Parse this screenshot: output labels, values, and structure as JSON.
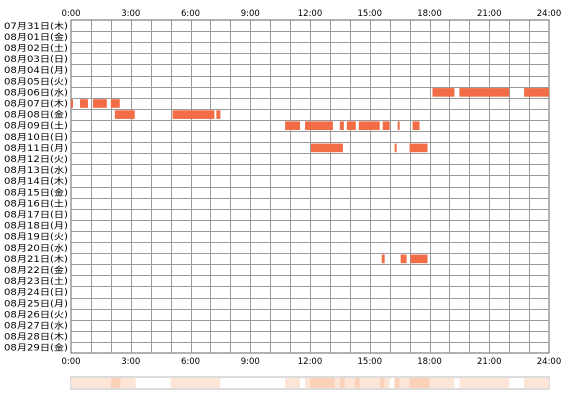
{
  "chart_data": {
    "type": "timeline",
    "title": "",
    "x_ticks": [
      "0:00",
      "3:00",
      "6:00",
      "9:00",
      "12:00",
      "15:00",
      "18:00",
      "21:00",
      "24:00"
    ],
    "x_range_hours": [
      0,
      24
    ],
    "grid": true,
    "rows": [
      {
        "label": "07月31日(木)",
        "spans": []
      },
      {
        "label": "08月01日(金)",
        "spans": []
      },
      {
        "label": "08月02日(土)",
        "spans": []
      },
      {
        "label": "08月03日(日)",
        "spans": []
      },
      {
        "label": "08月04日(月)",
        "spans": []
      },
      {
        "label": "08月05日(火)",
        "spans": []
      },
      {
        "label": "08月06日(水)",
        "spans": [
          [
            18.15,
            19.25
          ],
          [
            19.5,
            22.0
          ],
          [
            22.75,
            24.0
          ]
        ]
      },
      {
        "label": "08月07日(木)",
        "spans": [
          [
            0.0,
            0.1
          ],
          [
            0.45,
            0.85
          ],
          [
            1.1,
            1.8
          ],
          [
            2.0,
            2.45
          ]
        ]
      },
      {
        "label": "08月08日(金)",
        "spans": [
          [
            2.2,
            3.2
          ],
          [
            5.1,
            7.2
          ],
          [
            7.3,
            7.5
          ]
        ]
      },
      {
        "label": "08月09日(土)",
        "spans": [
          [
            10.75,
            11.5
          ],
          [
            11.75,
            13.15
          ],
          [
            13.5,
            13.7
          ],
          [
            13.85,
            14.3
          ],
          [
            14.45,
            15.5
          ],
          [
            15.65,
            16.0
          ],
          [
            16.4,
            16.5
          ],
          [
            17.15,
            17.5
          ]
        ]
      },
      {
        "label": "08月10日(日)",
        "spans": []
      },
      {
        "label": "08月11日(月)",
        "spans": [
          [
            12.05,
            13.65
          ],
          [
            16.25,
            16.35
          ],
          [
            17.0,
            17.9
          ]
        ]
      },
      {
        "label": "08月12日(火)",
        "spans": []
      },
      {
        "label": "08月13日(水)",
        "spans": []
      },
      {
        "label": "08月14日(木)",
        "spans": []
      },
      {
        "label": "08月15日(金)",
        "spans": []
      },
      {
        "label": "08月16日(土)",
        "spans": []
      },
      {
        "label": "08月17日(日)",
        "spans": []
      },
      {
        "label": "08月18日(月)",
        "spans": []
      },
      {
        "label": "08月19日(火)",
        "spans": []
      },
      {
        "label": "08月20日(水)",
        "spans": []
      },
      {
        "label": "08月21日(木)",
        "spans": [
          [
            15.6,
            15.75
          ],
          [
            16.55,
            16.85
          ],
          [
            17.05,
            17.9
          ]
        ]
      },
      {
        "label": "08月22日(金)",
        "spans": []
      },
      {
        "label": "08月23日(土)",
        "spans": []
      },
      {
        "label": "08月24日(日)",
        "spans": []
      },
      {
        "label": "08月25日(月)",
        "spans": []
      },
      {
        "label": "08月26日(火)",
        "spans": []
      },
      {
        "label": "08月27日(水)",
        "spans": []
      },
      {
        "label": "08月28日(木)",
        "spans": []
      },
      {
        "label": "08月29日(金)",
        "spans": []
      }
    ],
    "colors": {
      "bar": "#f26c45",
      "grid": "#9a9a9a",
      "frame": "#666666",
      "summary_light": "#fde6d8",
      "summary_mid": "#fbd1b8"
    }
  }
}
